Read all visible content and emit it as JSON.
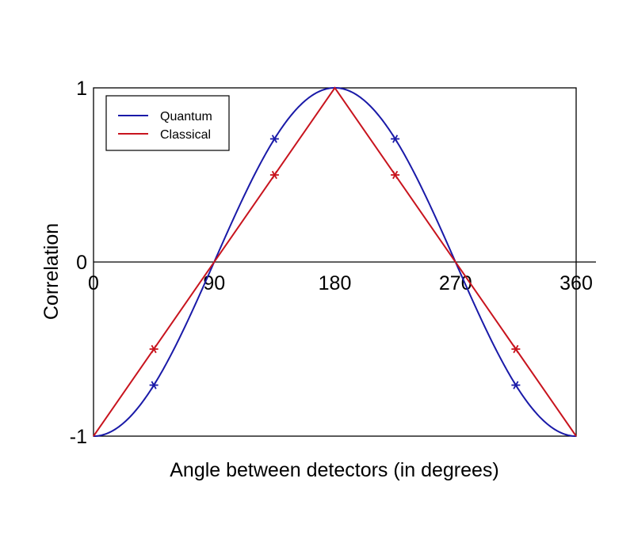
{
  "chart_data": {
    "type": "line",
    "xlabel": "Angle between detectors (in degrees)",
    "ylabel": "Correlation",
    "xlim": [
      0,
      360
    ],
    "ylim": [
      -1,
      1
    ],
    "x_ticks": [
      "0",
      "90",
      "180",
      "270",
      "360"
    ],
    "x_tick_values": [
      0,
      90,
      180,
      270,
      360
    ],
    "y_ticks": [
      "1",
      "0",
      "-1"
    ],
    "y_tick_values": [
      1,
      0,
      -1
    ],
    "grid": false,
    "legend_position": "top-left",
    "series": [
      {
        "name": "Quantum",
        "color": "#1a1aa8",
        "function": "-cos(x)",
        "x": [
          0,
          45,
          90,
          135,
          180,
          225,
          270,
          315,
          360
        ],
        "y": [
          -1,
          -0.707,
          0,
          0.707,
          1,
          0.707,
          0,
          -0.707,
          -1
        ],
        "markers": [
          {
            "x": 45,
            "y": -0.707
          },
          {
            "x": 135,
            "y": 0.707
          },
          {
            "x": 225,
            "y": 0.707
          },
          {
            "x": 315,
            "y": -0.707
          }
        ]
      },
      {
        "name": "Classical",
        "color": "#c8141e",
        "x": [
          0,
          180,
          360
        ],
        "y": [
          -1,
          1,
          -1
        ],
        "markers": [
          {
            "x": 45,
            "y": -0.5
          },
          {
            "x": 135,
            "y": 0.5
          },
          {
            "x": 225,
            "y": 0.5
          },
          {
            "x": 315,
            "y": -0.5
          }
        ]
      }
    ]
  }
}
